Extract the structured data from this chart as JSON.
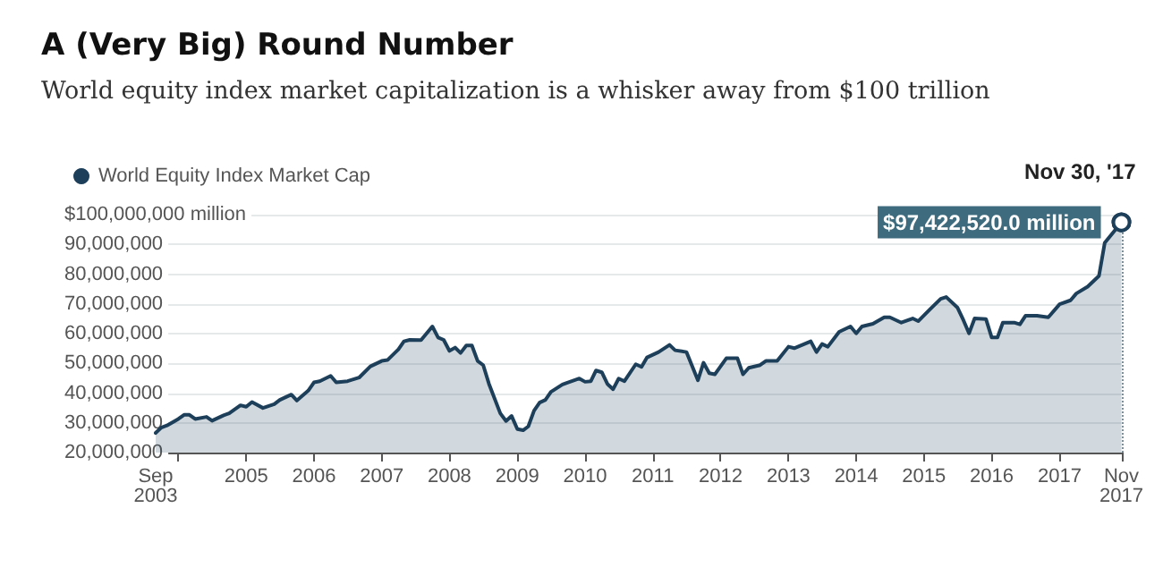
{
  "chart_data": {
    "type": "area",
    "title": "A (Very Big) Round Number",
    "subtitle": "World equity index market capitalization is a whisker away from $100 trillion",
    "x": [
      "2003-09",
      "2003-10",
      "2003-11",
      "2004-01",
      "2004-02",
      "2004-03",
      "2004-04",
      "2004-06",
      "2004-07",
      "2004-09",
      "2004-10",
      "2004-12",
      "2005-01",
      "2005-02",
      "2005-04",
      "2005-06",
      "2005-07",
      "2005-09",
      "2005-10",
      "2005-12",
      "2006-01",
      "2006-02",
      "2006-04",
      "2006-05",
      "2006-07",
      "2006-09",
      "2006-11",
      "2007-01",
      "2007-02",
      "2007-04",
      "2007-05",
      "2007-06",
      "2007-08",
      "2007-10",
      "2007-11",
      "2007-12",
      "2008-01",
      "2008-02",
      "2008-03",
      "2008-04",
      "2008-05",
      "2008-06",
      "2008-07",
      "2008-08",
      "2008-10",
      "2008-11",
      "2008-12",
      "2009-01",
      "2009-02",
      "2009-03",
      "2009-04",
      "2009-05",
      "2009-06",
      "2009-07",
      "2009-09",
      "2009-10",
      "2009-12",
      "2010-01",
      "2010-02",
      "2010-03",
      "2010-04",
      "2010-05",
      "2010-06",
      "2010-07",
      "2010-08",
      "2010-10",
      "2010-11",
      "2010-12",
      "2011-02",
      "2011-04",
      "2011-05",
      "2011-07",
      "2011-09",
      "2011-10",
      "2011-11",
      "2011-12",
      "2012-02",
      "2012-04",
      "2012-05",
      "2012-06",
      "2012-08",
      "2012-09",
      "2012-11",
      "2013-01",
      "2013-02",
      "2013-05",
      "2013-06",
      "2013-07",
      "2013-08",
      "2013-10",
      "2013-12",
      "2014-01",
      "2014-02",
      "2014-04",
      "2014-06",
      "2014-07",
      "2014-09",
      "2014-11",
      "2014-12",
      "2015-02",
      "2015-04",
      "2015-05",
      "2015-07",
      "2015-08",
      "2015-09",
      "2015-10",
      "2015-12",
      "2016-01",
      "2016-02",
      "2016-03",
      "2016-05",
      "2016-06",
      "2016-07",
      "2016-09",
      "2016-11",
      "2017-01",
      "2017-03",
      "2017-04",
      "2017-06",
      "2017-08",
      "2017-09",
      "2017-11-30"
    ],
    "series": [
      {
        "name": "World Equity Index Market Cap",
        "color": "#1d3f5a",
        "values": [
          26600000,
          28400000,
          29100000,
          31300000,
          32700000,
          32700000,
          31300000,
          32000000,
          30700000,
          32500000,
          33200000,
          35900000,
          35400000,
          37000000,
          35000000,
          36300000,
          37700000,
          39500000,
          37500000,
          40800000,
          43600000,
          44000000,
          45800000,
          43600000,
          44000000,
          45200000,
          49000000,
          50800000,
          51100000,
          54700000,
          57400000,
          57900000,
          57800000,
          62400000,
          58700000,
          57900000,
          54200000,
          55300000,
          53500000,
          56000000,
          56000000,
          50800000,
          49400000,
          43100000,
          33200000,
          30600000,
          32300000,
          27900000,
          27500000,
          28800000,
          34100000,
          36800000,
          37700000,
          40400000,
          42900000,
          43600000,
          44900000,
          43800000,
          44000000,
          47600000,
          47000000,
          43100000,
          41300000,
          44900000,
          44000000,
          49700000,
          48800000,
          52000000,
          53800000,
          56200000,
          54400000,
          53800000,
          44300000,
          50200000,
          46700000,
          46300000,
          51700000,
          51700000,
          46300000,
          48500000,
          49400000,
          50800000,
          50800000,
          55600000,
          55100000,
          57400000,
          53800000,
          56500000,
          55600000,
          60600000,
          62400000,
          60100000,
          62400000,
          63300000,
          65500000,
          65500000,
          63700000,
          65100000,
          64200000,
          68100000,
          71700000,
          72300000,
          68700000,
          64600000,
          60100000,
          65100000,
          64900000,
          58700000,
          58700000,
          63700000,
          63700000,
          63100000,
          66000000,
          66000000,
          65500000,
          69900000,
          71200000,
          73500000,
          75800000,
          79400000,
          90500000,
          97422520
        ]
      }
    ],
    "xlim": [
      "2003-09-01",
      "2017-11-30"
    ],
    "xticks": [
      {
        "value": "2003-09-01",
        "label": "Sep\n2003"
      },
      {
        "value": "2004",
        "label": null
      },
      {
        "value": "2005",
        "label": "2005"
      },
      {
        "value": "2006",
        "label": "2006"
      },
      {
        "value": "2007",
        "label": "2007"
      },
      {
        "value": "2008",
        "label": "2008"
      },
      {
        "value": "2009",
        "label": "2009"
      },
      {
        "value": "2010",
        "label": "2010"
      },
      {
        "value": "2011",
        "label": "2011"
      },
      {
        "value": "2012",
        "label": "2012"
      },
      {
        "value": "2013",
        "label": "2013"
      },
      {
        "value": "2014",
        "label": "2014"
      },
      {
        "value": "2015",
        "label": "2015"
      },
      {
        "value": "2016",
        "label": "2016"
      },
      {
        "value": "2017",
        "label": "2017"
      },
      {
        "value": "2017-11-30",
        "label": "Nov\n2017"
      }
    ],
    "ylim": [
      20000000,
      100000000
    ],
    "yticks": [
      {
        "value": 20000000,
        "label": "20,000,000"
      },
      {
        "value": 30000000,
        "label": "30,000,000"
      },
      {
        "value": 40000000,
        "label": "40,000,000"
      },
      {
        "value": 50000000,
        "label": "50,000,000"
      },
      {
        "value": 60000000,
        "label": "60,000,000"
      },
      {
        "value": 70000000,
        "label": "70,000,000"
      },
      {
        "value": 80000000,
        "label": "80,000,000"
      },
      {
        "value": 90000000,
        "label": "90,000,000"
      },
      {
        "value": 100000000,
        "label": "$100,000,000 million"
      }
    ],
    "annotations": [
      {
        "text": "Nov 30, '17",
        "x": "2017-11-30",
        "y": 97422520
      },
      {
        "text": "$97,422,520.0 million",
        "x": "2017-11-30",
        "y": 97422520
      }
    ],
    "ref_lines": [
      {
        "axis": "x",
        "value": "2017-11-30",
        "color": "#7d8f99",
        "line_style": "dotted"
      }
    ],
    "grid": "y",
    "legend": "top left",
    "marker": "none",
    "line_style": "solid"
  }
}
